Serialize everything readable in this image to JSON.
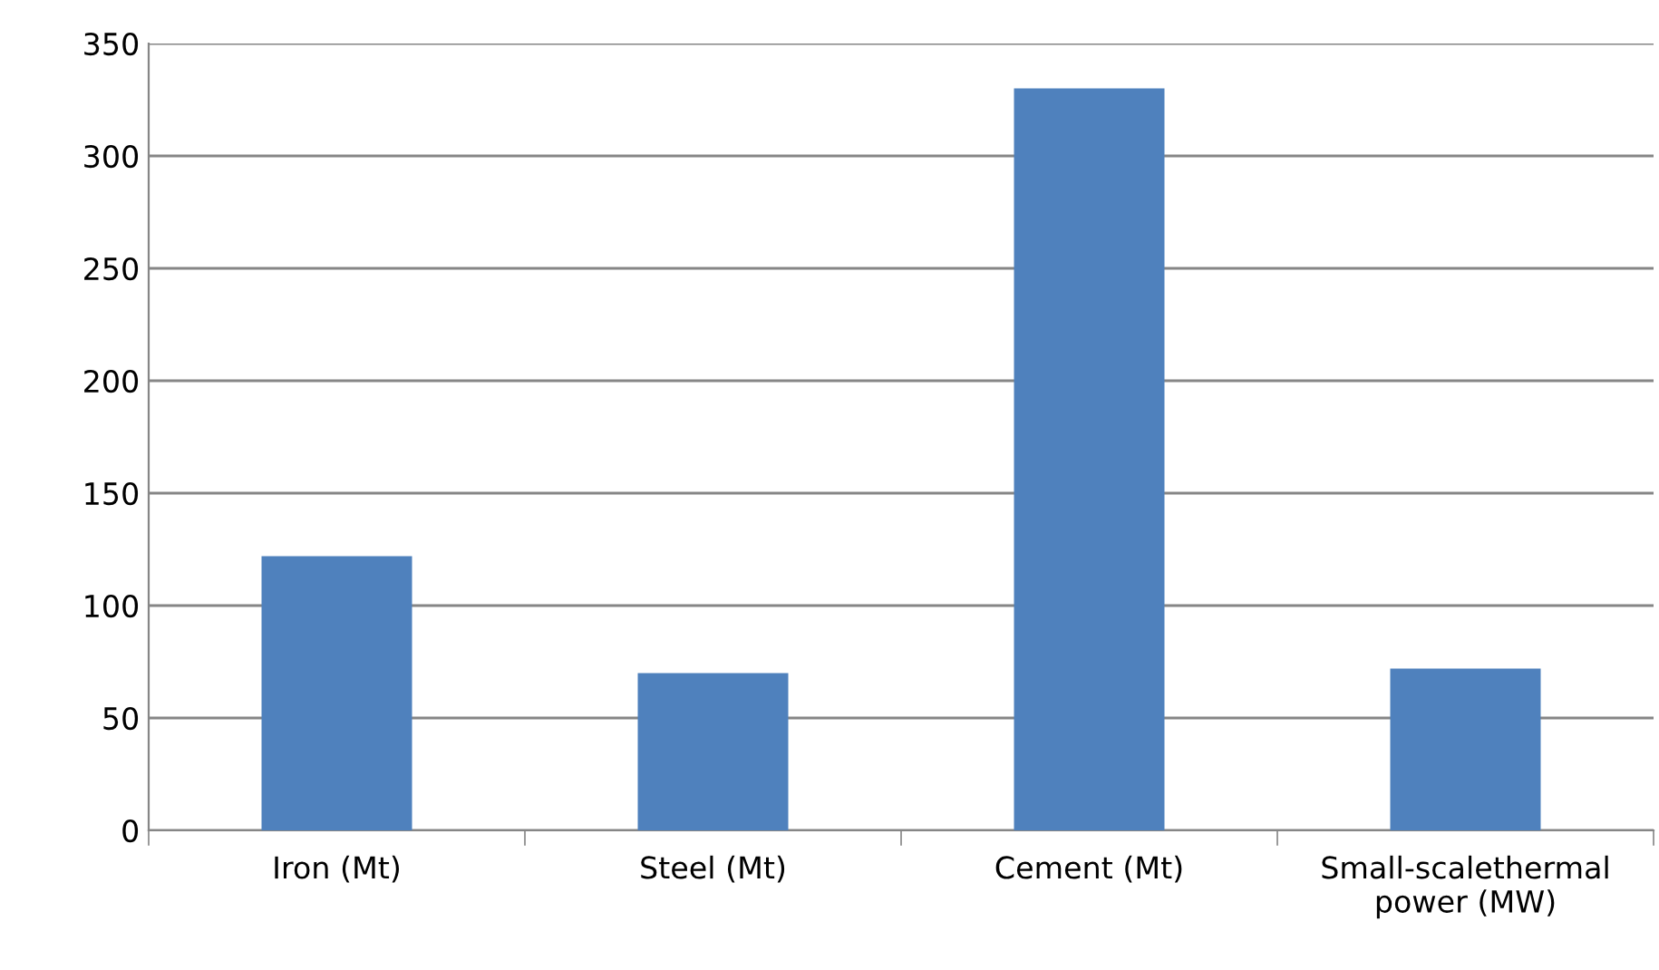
{
  "chart_data": {
    "type": "bar",
    "categories": [
      "Iron (Mt)",
      "Steel (Mt)",
      "Cement (Mt)",
      "Small-scalethermal\npower (MW)"
    ],
    "values": [
      122,
      70,
      330,
      72
    ],
    "color": "#4f81bd",
    "ylim": [
      0,
      350
    ],
    "yticks": [
      0,
      50,
      100,
      150,
      200,
      250,
      300,
      350
    ],
    "grid": "y"
  }
}
